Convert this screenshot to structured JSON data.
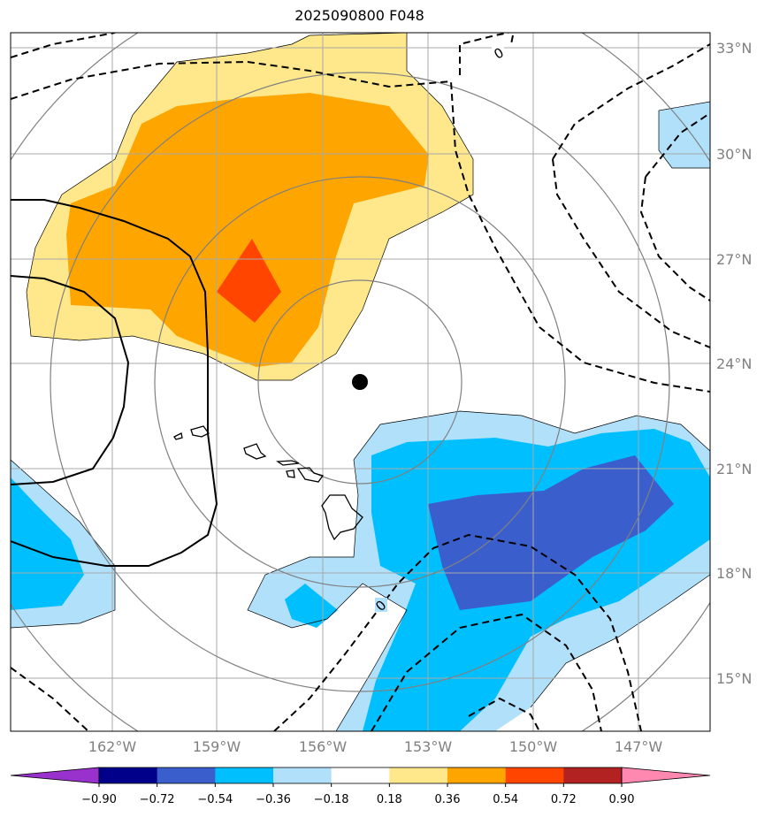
{
  "title": "2025090800 F048",
  "map": {
    "lat_labels": [
      "33°N",
      "30°N",
      "27°N",
      "24°N",
      "21°N",
      "18°N",
      "15°N"
    ],
    "lon_labels": [
      "162°W",
      "159°W",
      "156°W",
      "153°W",
      "150°W",
      "147°W"
    ],
    "contour_labels": [
      "0",
      "0"
    ],
    "center_marker_icon": "storm-center-dot-icon"
  },
  "colorbar": {
    "ticks": [
      "−0.90",
      "−0.72",
      "−0.54",
      "−0.36",
      "−0.18",
      "0.18",
      "0.36",
      "0.54",
      "0.72",
      "0.90"
    ],
    "colors": [
      "#9932cc",
      "#00008b",
      "#3a5fcd",
      "#00bfff",
      "#b0e0fa",
      "#ffffff",
      "#ffe88c",
      "#ffa500",
      "#ff4500",
      "#b22222",
      "#ff88b0"
    ]
  },
  "colors": {
    "light_yellow": "#ffe88c",
    "orange": "#ffa500",
    "red_orange": "#ff4500",
    "light_blue": "#b0e0fa",
    "deep_sky_blue": "#00bfff",
    "royal_blue": "#3a5fcd",
    "grid": "#a9a9a9",
    "range_ring": "#808080"
  }
}
